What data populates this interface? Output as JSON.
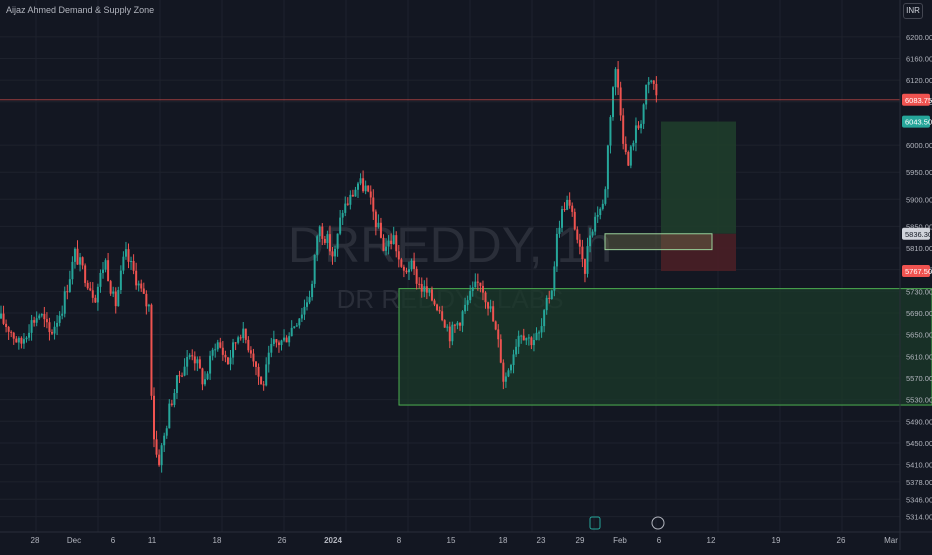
{
  "indicator_label": "Aijaz Ahmed Demand & Supply Zone",
  "currency": "INR",
  "watermark": {
    "symbol": "DRREDDY, 1h",
    "name": "DR REDDYS LABS"
  },
  "colors": {
    "background": "#131722",
    "up": "#26a69a",
    "down": "#ef5350",
    "grid": "#1e222d",
    "axis_text": "#b2b5be",
    "demand_zone_border": "#4caf50",
    "target_zone": "#1f3d2b",
    "stop_zone": "#4a1f26",
    "current_price_line": "#ef5350"
  },
  "chart_data": {
    "type": "candlestick",
    "y_axis": {
      "ticks": [
        6200.0,
        6160.0,
        6120.0,
        6080.0,
        6000.0,
        5950.0,
        5900.0,
        5850.0,
        5810.0,
        5770.0,
        5730.0,
        5690.0,
        5650.0,
        5610.0,
        5570.0,
        5530.0,
        5490.0,
        5450.0,
        5410.0,
        5378.0,
        5346.0,
        5314.0
      ],
      "ylim": [
        5304,
        6220
      ]
    },
    "x_axis": {
      "ticks": [
        "28",
        "Dec",
        "6",
        "11",
        "18",
        "26",
        "2024",
        "8",
        "15",
        "18",
        "23",
        "29",
        "Feb",
        "6",
        "12",
        "19",
        "26",
        "Mar"
      ],
      "bold_ticks": [
        "2024"
      ],
      "end_label": "Mar"
    },
    "price_labels": [
      {
        "label": "6083.75",
        "value": 6083.75,
        "kind": "current"
      },
      {
        "label": "6043.50",
        "value": 6043.5,
        "kind": "target"
      },
      {
        "label": "5836.30",
        "value": 5836.3,
        "kind": "entry"
      },
      {
        "label": "5767.50",
        "value": 5767.5,
        "kind": "stop"
      }
    ],
    "zones": [
      {
        "kind": "demand",
        "top": 5735,
        "bottom": 5520,
        "x_start": 399,
        "x_end": 932
      },
      {
        "kind": "target",
        "top": 6043.5,
        "bottom": 5836.3,
        "x_start": 661,
        "x_end": 736
      },
      {
        "kind": "stop",
        "top": 5836.3,
        "bottom": 5767.5,
        "x_start": 661,
        "x_end": 736
      },
      {
        "kind": "entry-box",
        "top": 5836.3,
        "bottom": 5807,
        "x_start": 605,
        "x_end": 712
      }
    ],
    "series_path": [
      [
        0,
        5680
      ],
      [
        10,
        5660
      ],
      [
        20,
        5630
      ],
      [
        30,
        5670
      ],
      [
        40,
        5690
      ],
      [
        50,
        5650
      ],
      [
        62,
        5700
      ],
      [
        75,
        5800
      ],
      [
        85,
        5760
      ],
      [
        95,
        5720
      ],
      [
        105,
        5790
      ],
      [
        115,
        5700
      ],
      [
        125,
        5800
      ],
      [
        135,
        5760
      ],
      [
        145,
        5710
      ],
      [
        150,
        5700
      ],
      [
        152,
        5490
      ],
      [
        158,
        5410
      ],
      [
        164,
        5460
      ],
      [
        170,
        5520
      ],
      [
        180,
        5580
      ],
      [
        192,
        5620
      ],
      [
        204,
        5560
      ],
      [
        216,
        5640
      ],
      [
        228,
        5600
      ],
      [
        240,
        5660
      ],
      [
        252,
        5620
      ],
      [
        262,
        5550
      ],
      [
        272,
        5630
      ],
      [
        284,
        5640
      ],
      [
        294,
        5670
      ],
      [
        304,
        5700
      ],
      [
        312,
        5740
      ],
      [
        318,
        5850
      ],
      [
        326,
        5830
      ],
      [
        334,
        5790
      ],
      [
        342,
        5880
      ],
      [
        350,
        5900
      ],
      [
        358,
        5930
      ],
      [
        366,
        5920
      ],
      [
        374,
        5870
      ],
      [
        384,
        5810
      ],
      [
        394,
        5830
      ],
      [
        402,
        5760
      ],
      [
        410,
        5780
      ],
      [
        420,
        5740
      ],
      [
        430,
        5720
      ],
      [
        440,
        5700
      ],
      [
        450,
        5650
      ],
      [
        460,
        5680
      ],
      [
        470,
        5720
      ],
      [
        480,
        5750
      ],
      [
        490,
        5700
      ],
      [
        500,
        5620
      ],
      [
        504,
        5560
      ],
      [
        510,
        5600
      ],
      [
        520,
        5660
      ],
      [
        530,
        5640
      ],
      [
        540,
        5650
      ],
      [
        546,
        5700
      ],
      [
        552,
        5740
      ],
      [
        558,
        5850
      ],
      [
        566,
        5900
      ],
      [
        574,
        5860
      ],
      [
        580,
        5800
      ],
      [
        584,
        5760
      ],
      [
        590,
        5840
      ],
      [
        598,
        5880
      ],
      [
        604,
        5890
      ],
      [
        608,
        6000
      ],
      [
        612,
        6100
      ],
      [
        616,
        6140
      ],
      [
        620,
        6080
      ],
      [
        624,
        6000
      ],
      [
        628,
        5960
      ],
      [
        634,
        6020
      ],
      [
        640,
        6040
      ],
      [
        646,
        6100
      ],
      [
        652,
        6120
      ],
      [
        658,
        6083.75
      ]
    ]
  }
}
